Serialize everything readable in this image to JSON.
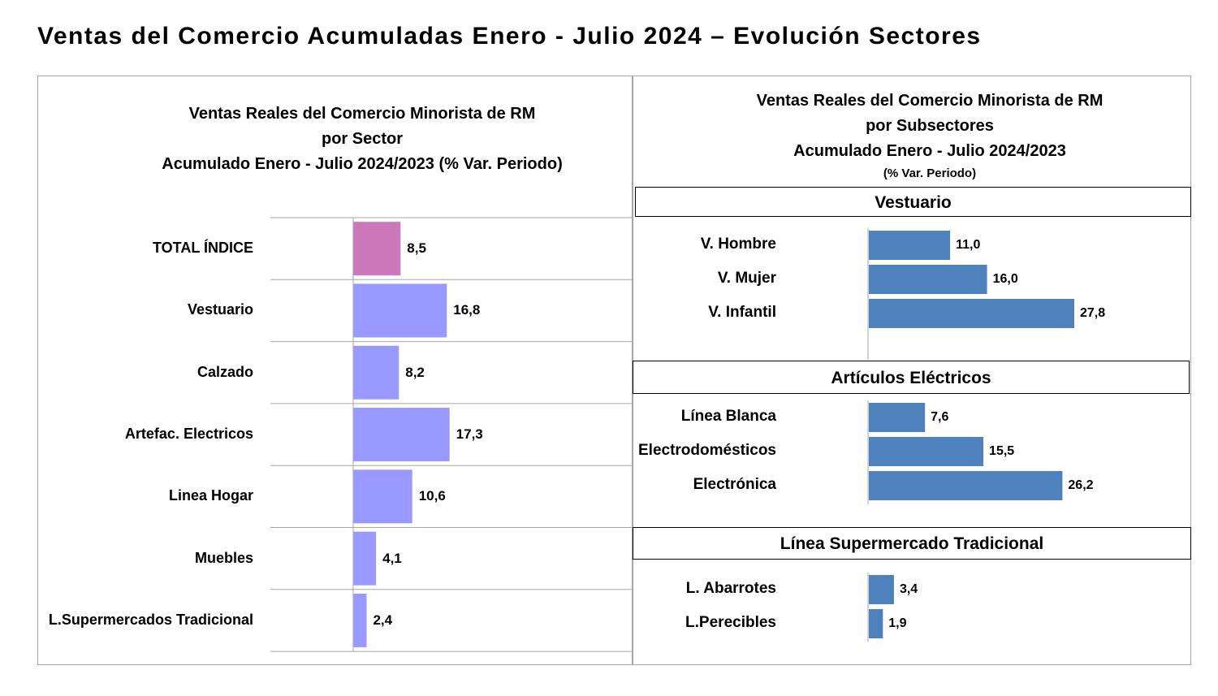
{
  "page_title": "Ventas del Comercio Acumuladas Enero - Julio 2024 – Evolución Sectores",
  "colors": {
    "total_bar": "#cc79bb",
    "sector_bar": "#9999ff",
    "subsector_bar": "#4f81bd",
    "gridline": "#a6a6a6"
  },
  "chart_data": [
    {
      "type": "bar",
      "orientation": "horizontal",
      "title_lines": [
        "Ventas Reales del Comercio Minorista de RM",
        "por Sector",
        "Acumulado Enero - Julio  2024/2023 (% Var. Periodo)"
      ],
      "categories": [
        "TOTAL ÍNDICE",
        "Vestuario",
        "Calzado",
        "Artefac. Electricos",
        "Linea Hogar",
        "Muebles",
        "L.Supermercados Tradicional"
      ],
      "values": [
        8.5,
        16.8,
        8.2,
        17.3,
        10.6,
        4.1,
        2.4
      ],
      "value_labels": [
        "8,5",
        "16,8",
        "8,2",
        "17,3",
        "10,6",
        "4,1",
        "2,4"
      ],
      "xlim": [
        0,
        50
      ],
      "grid": true
    },
    {
      "type": "bar",
      "orientation": "horizontal",
      "title_lines": [
        "Ventas Reales del Comercio Minorista de RM",
        "por Subsectores",
        "Acumulado Enero - Julio  2024/2023"
      ],
      "title_note": "(% Var. Periodo)",
      "xlim": [
        0,
        58
      ],
      "grid": false,
      "groups": [
        {
          "name": "Vestuario",
          "categories": [
            "V. Hombre",
            "V. Mujer",
            "V. Infantil"
          ],
          "values": [
            11.0,
            16.0,
            27.8
          ],
          "value_labels": [
            "11,0",
            "16,0",
            "27,8"
          ]
        },
        {
          "name": "Artículos Eléctricos",
          "categories": [
            "Línea Blanca",
            "Electrodomésticos",
            "Electrónica"
          ],
          "values": [
            7.6,
            15.5,
            26.2
          ],
          "value_labels": [
            "7,6",
            "15,5",
            "26,2"
          ]
        },
        {
          "name": "Línea  Supermercado Tradicional",
          "categories": [
            "L. Abarrotes",
            "L.Perecibles"
          ],
          "values": [
            3.4,
            1.9
          ],
          "value_labels": [
            "3,4",
            "1,9"
          ]
        }
      ]
    }
  ]
}
